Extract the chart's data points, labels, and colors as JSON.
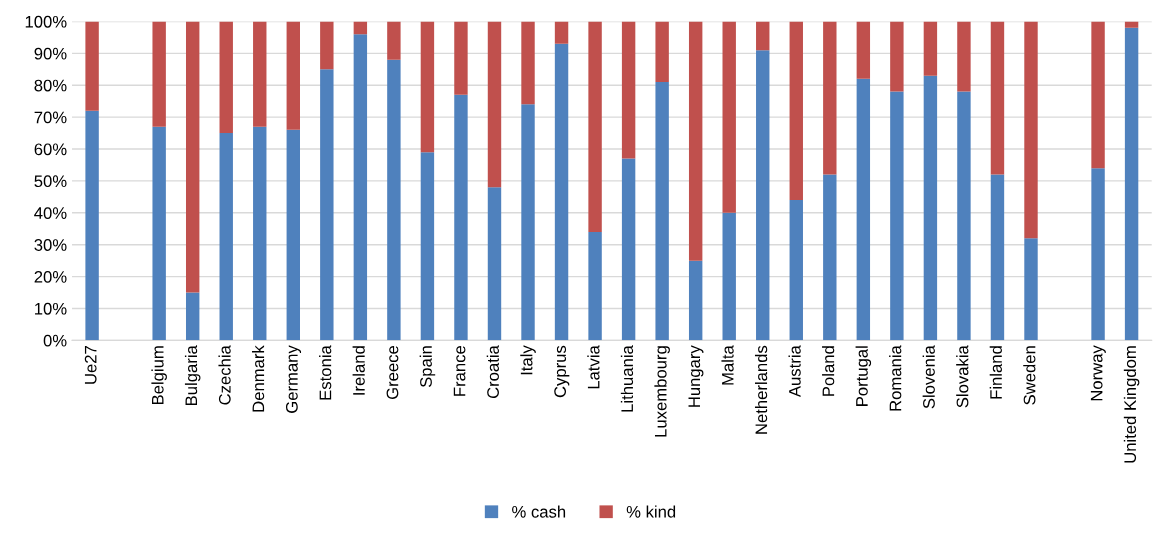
{
  "chart_data": {
    "type": "bar",
    "stacked": true,
    "categories": [
      "Ue27",
      null,
      "Belgium",
      "Bulgaria",
      "Czechia",
      "Denmark",
      "Germany",
      "Estonia",
      "Ireland",
      "Greece",
      "Spain",
      "France",
      "Croatia",
      "Italy",
      "Cyprus",
      "Latvia",
      "Lithuania",
      "Luxembourg",
      "Hungary",
      "Malta",
      "Netherlands",
      "Austria",
      "Poland",
      "Portugal",
      "Romania",
      "Slovenia",
      "Slovakia",
      "Finland",
      "Sweden",
      null,
      "Norway",
      "United Kingdom"
    ],
    "series": [
      {
        "name": "% cash",
        "color": "#4f81bd",
        "values": [
          72,
          null,
          67,
          15,
          65,
          67,
          66,
          85,
          96,
          88,
          59,
          77,
          48,
          74,
          93,
          34,
          57,
          81,
          25,
          40,
          91,
          44,
          52,
          82,
          78,
          83,
          78,
          52,
          32,
          null,
          54,
          98
        ]
      },
      {
        "name": "% kind",
        "color": "#c0504d",
        "values": [
          28,
          null,
          33,
          85,
          35,
          33,
          34,
          15,
          4,
          12,
          41,
          23,
          52,
          26,
          7,
          66,
          43,
          19,
          75,
          60,
          9,
          56,
          48,
          18,
          22,
          17,
          22,
          48,
          68,
          null,
          46,
          2
        ]
      }
    ],
    "ylim": [
      0,
      100
    ],
    "yticks": [
      {
        "value": 0,
        "label": "0%"
      },
      {
        "value": 10,
        "label": "10%"
      },
      {
        "value": 20,
        "label": "20%"
      },
      {
        "value": 30,
        "label": "30%"
      },
      {
        "value": 40,
        "label": "40%"
      },
      {
        "value": 50,
        "label": "50%"
      },
      {
        "value": 60,
        "label": "60%"
      },
      {
        "value": 70,
        "label": "70%"
      },
      {
        "value": 80,
        "label": "80%"
      },
      {
        "value": 90,
        "label": "90%"
      },
      {
        "value": 100,
        "label": "100%"
      }
    ],
    "grid": "y",
    "legend": "bottom"
  }
}
